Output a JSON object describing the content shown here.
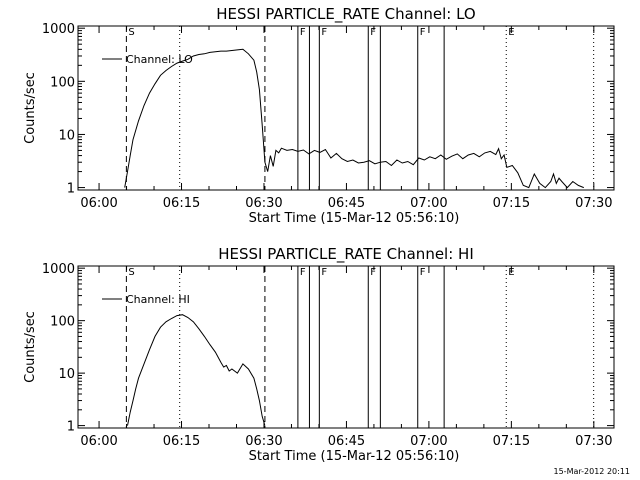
{
  "footer": {
    "timestamp": "15-Mar-2012 20:11"
  },
  "chart_data": [
    {
      "type": "line",
      "title": "HESSI PARTICLE_RATE Channel: LO",
      "xlabel": "Start Time (15-Mar-12 05:56:10)",
      "ylabel": "Counts/sec",
      "y_scale": "log",
      "x_unit": "minutes after 05:56:10",
      "xlim": [
        0,
        97.5
      ],
      "ylim": [
        0.9,
        1100
      ],
      "x_ticks": [
        {
          "value": 3.83,
          "label": "06:00"
        },
        {
          "value": 18.83,
          "label": "06:15"
        },
        {
          "value": 33.83,
          "label": "06:30"
        },
        {
          "value": 48.83,
          "label": "06:45"
        },
        {
          "value": 63.83,
          "label": "07:00"
        },
        {
          "value": 78.83,
          "label": "07:15"
        },
        {
          "value": 93.83,
          "label": "07:30"
        }
      ],
      "y_ticks": [
        {
          "value": 1,
          "label": "1"
        },
        {
          "value": 10,
          "label": "10"
        },
        {
          "value": 100,
          "label": "100"
        },
        {
          "value": 1000,
          "label": "1000"
        }
      ],
      "legend": {
        "label": "Channel: LO",
        "position": "top-left"
      },
      "markers": [
        {
          "x": 8.8,
          "style": "dashed",
          "flag": "S"
        },
        {
          "x": 18.5,
          "style": "dotted",
          "flag": ""
        },
        {
          "x": 34.0,
          "style": "dashed",
          "flag": ""
        },
        {
          "x": 40.0,
          "style": "solid",
          "flag": "F"
        },
        {
          "x": 42.1,
          "style": "solid",
          "flag": ""
        },
        {
          "x": 43.9,
          "style": "solid",
          "flag": "F"
        },
        {
          "x": 52.8,
          "style": "solid",
          "flag": "F"
        },
        {
          "x": 55.0,
          "style": "solid",
          "flag": ""
        },
        {
          "x": 61.8,
          "style": "solid",
          "flag": "F"
        },
        {
          "x": 66.6,
          "style": "solid",
          "flag": ""
        },
        {
          "x": 77.9,
          "style": "dotted",
          "flag": "E"
        },
        {
          "x": 93.8,
          "style": "dotted",
          "flag": ""
        }
      ],
      "series": [
        {
          "x": [
            8.5,
            9.0,
            9.5,
            10.0,
            11.0,
            12.0,
            13.0,
            14.0,
            15.0,
            16.0,
            17.0,
            18.0,
            19.0,
            20.0,
            21.0,
            22.0,
            23.0,
            24.0,
            25.0,
            26.0,
            27.0,
            28.0,
            29.0,
            30.0,
            31.0,
            32.0,
            32.5,
            33.0,
            33.5,
            34.0,
            34.5,
            35.0,
            35.5,
            36.0,
            36.5,
            37.0,
            38.0,
            39.0,
            40.0,
            41.0,
            42.0,
            43.0,
            44.0,
            45.0,
            46.0,
            47.0,
            48.0,
            49.0,
            50.0,
            51.0,
            52.0,
            53.0,
            54.0,
            55.0,
            56.0,
            57.0,
            58.0,
            59.0,
            60.0,
            61.0,
            62.0,
            63.0,
            64.0,
            65.0,
            66.0,
            67.0,
            68.0,
            69.0,
            70.0,
            71.0,
            72.0,
            73.0,
            74.0,
            75.0,
            76.0,
            76.5,
            77.0,
            77.5,
            78.0,
            79.0,
            80.0,
            81.0,
            82.0,
            83.0,
            84.0,
            85.0,
            86.0,
            86.5,
            87.0,
            87.5,
            88.0,
            89.0,
            90.0,
            91.0,
            92.0
          ],
          "y": [
            1,
            2,
            4,
            8,
            18,
            35,
            60,
            90,
            130,
            160,
            190,
            220,
            240,
            260,
            300,
            320,
            330,
            350,
            360,
            370,
            370,
            380,
            390,
            400,
            330,
            250,
            150,
            70,
            15,
            3,
            2,
            4,
            2.5,
            5,
            4.5,
            5.5,
            5,
            5.2,
            4.8,
            5.1,
            4.3,
            5.0,
            4.6,
            5.2,
            3.6,
            4.4,
            3.5,
            3.1,
            3.3,
            2.9,
            3.0,
            3.2,
            2.8,
            3.0,
            3.1,
            2.6,
            3.3,
            2.9,
            3.1,
            2.7,
            3.6,
            3.3,
            3.8,
            3.5,
            4.1,
            3.4,
            3.9,
            4.3,
            3.5,
            4.1,
            4.4,
            3.8,
            4.5,
            4.8,
            4.2,
            5.4,
            3.5,
            4.1,
            2.4,
            2.6,
            1.9,
            1.1,
            1.0,
            1.8,
            1.2,
            1.0,
            1.3,
            1.8,
            1.2,
            1.5,
            1.3,
            1.0,
            1.3,
            1.1,
            1.0
          ]
        }
      ]
    },
    {
      "type": "line",
      "title": "HESSI PARTICLE_RATE Channel: HI",
      "xlabel": "Start Time (15-Mar-12 05:56:10)",
      "ylabel": "Counts/sec",
      "y_scale": "log",
      "x_unit": "minutes after 05:56:10",
      "xlim": [
        0,
        97.5
      ],
      "ylim": [
        0.9,
        1100
      ],
      "x_ticks": [
        {
          "value": 3.83,
          "label": "06:00"
        },
        {
          "value": 18.83,
          "label": "06:15"
        },
        {
          "value": 33.83,
          "label": "06:30"
        },
        {
          "value": 48.83,
          "label": "06:45"
        },
        {
          "value": 63.83,
          "label": "07:00"
        },
        {
          "value": 78.83,
          "label": "07:15"
        },
        {
          "value": 93.83,
          "label": "07:30"
        }
      ],
      "y_ticks": [
        {
          "value": 1,
          "label": "1"
        },
        {
          "value": 10,
          "label": "10"
        },
        {
          "value": 100,
          "label": "100"
        },
        {
          "value": 1000,
          "label": "1000"
        }
      ],
      "legend": {
        "label": "Channel: HI",
        "position": "top-left"
      },
      "markers": [
        {
          "x": 8.8,
          "style": "dashed",
          "flag": "S"
        },
        {
          "x": 18.5,
          "style": "dotted",
          "flag": ""
        },
        {
          "x": 34.0,
          "style": "dashed",
          "flag": ""
        },
        {
          "x": 40.0,
          "style": "solid",
          "flag": "F"
        },
        {
          "x": 42.1,
          "style": "solid",
          "flag": ""
        },
        {
          "x": 43.9,
          "style": "solid",
          "flag": "F"
        },
        {
          "x": 52.8,
          "style": "solid",
          "flag": "F"
        },
        {
          "x": 55.0,
          "style": "solid",
          "flag": ""
        },
        {
          "x": 61.8,
          "style": "solid",
          "flag": "F"
        },
        {
          "x": 66.6,
          "style": "solid",
          "flag": ""
        },
        {
          "x": 77.9,
          "style": "dotted",
          "flag": "E"
        },
        {
          "x": 93.8,
          "style": "dotted",
          "flag": ""
        }
      ],
      "series": [
        {
          "x": [
            9.0,
            9.5,
            10.0,
            10.5,
            11.0,
            12.0,
            13.0,
            14.0,
            15.0,
            16.0,
            17.0,
            18.0,
            19.0,
            20.0,
            21.0,
            22.0,
            23.0,
            24.0,
            25.0,
            26.0,
            26.5,
            27.0,
            27.5,
            28.0,
            29.0,
            30.0,
            31.0,
            32.0,
            32.5,
            33.0,
            33.5,
            34.0
          ],
          "y": [
            1,
            1.8,
            3,
            5,
            8,
            15,
            28,
            50,
            75,
            95,
            110,
            125,
            130,
            115,
            95,
            70,
            50,
            35,
            25,
            16,
            13,
            14,
            11,
            12,
            10,
            15,
            12,
            8,
            5,
            3,
            1.5,
            1
          ]
        }
      ]
    }
  ]
}
